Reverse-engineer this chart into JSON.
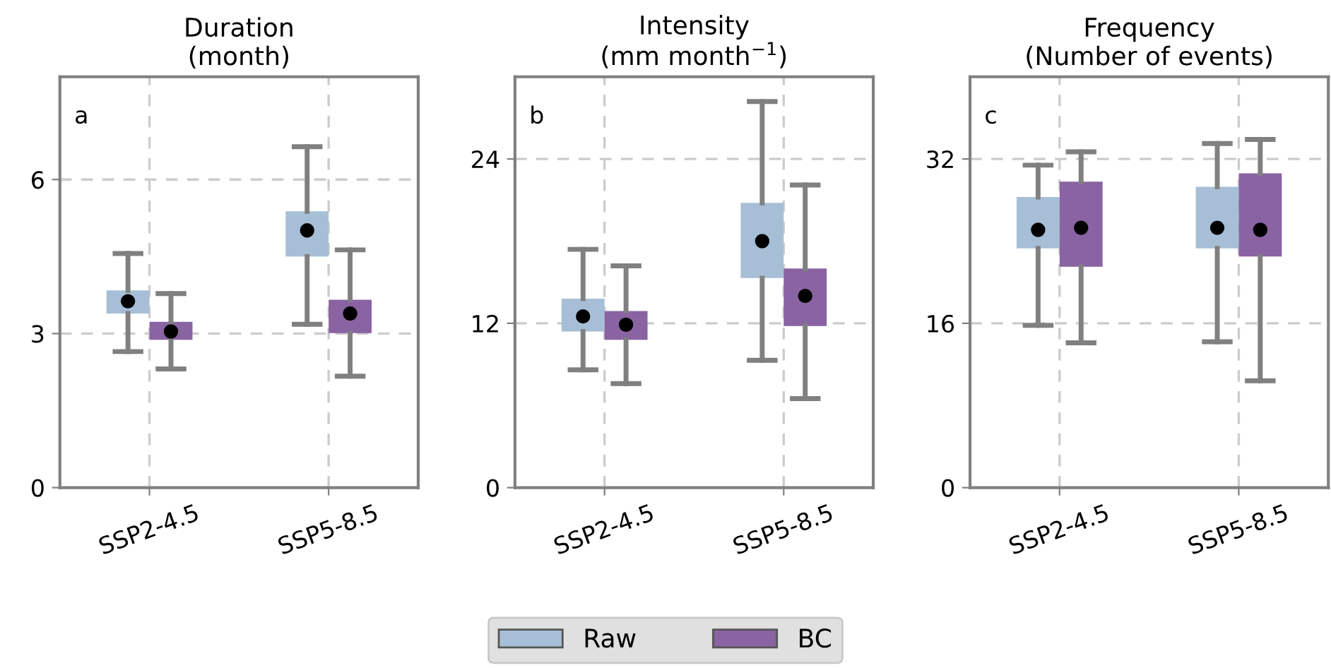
{
  "chart_data": [
    {
      "type": "box",
      "title": "Duration\n(month)",
      "annotations": [
        "a"
      ],
      "categories": [
        "SSP2-4.5",
        "SSP5-8.5"
      ],
      "ylim": [
        0,
        8
      ],
      "yticks": [
        0,
        3,
        6
      ],
      "grid": true,
      "legend": "bottom",
      "series": [
        {
          "name": "Raw",
          "color": "#a7bfd6",
          "boxes": [
            {
              "low": 2.65,
              "q1": 3.39,
              "median": 3.63,
              "q3": 3.84,
              "high": 4.56
            },
            {
              "low": 3.18,
              "q1": 4.5,
              "median": 5.01,
              "q3": 5.38,
              "high": 6.64
            }
          ]
        },
        {
          "name": "BC",
          "color": "#8a63a2",
          "boxes": [
            {
              "low": 2.31,
              "q1": 2.88,
              "median": 3.04,
              "q3": 3.23,
              "high": 3.78
            },
            {
              "low": 2.17,
              "q1": 3.01,
              "median": 3.39,
              "q3": 3.66,
              "high": 4.63
            }
          ]
        }
      ]
    },
    {
      "type": "box",
      "title": "Intensity\n(mm month$^{−1}$)",
      "annotations": [
        "b"
      ],
      "categories": [
        "SSP2-4.5",
        "SSP5-8.5"
      ],
      "ylim": [
        0,
        30
      ],
      "yticks": [
        0,
        12,
        24
      ],
      "grid": true,
      "series": [
        {
          "color": "#a7bfd6",
          "boxes": [
            {
              "low": 8.6,
              "q1": 11.4,
              "median": 12.5,
              "q3": 13.8,
              "high": 17.4
            },
            {
              "low": 9.3,
              "q1": 15.3,
              "median": 18.0,
              "q3": 20.8,
              "high": 28.2
            }
          ]
        },
        {
          "color": "#8a63a2",
          "boxes": [
            {
              "low": 7.6,
              "q1": 10.8,
              "median": 11.9,
              "q3": 12.9,
              "high": 16.2
            },
            {
              "low": 6.5,
              "q1": 11.8,
              "median": 14.0,
              "q3": 16.0,
              "high": 22.1
            }
          ]
        }
      ]
    },
    {
      "type": "box",
      "title": "Frequency\n(Number of events)",
      "annotations": [
        "c"
      ],
      "categories": [
        "SSP2-4.5",
        "SSP5-8.5"
      ],
      "ylim": [
        0,
        40
      ],
      "yticks": [
        0,
        16,
        32
      ],
      "grid": true,
      "series": [
        {
          "color": "#a7bfd6",
          "boxes": [
            {
              "low": 15.8,
              "q1": 23.3,
              "median": 25.1,
              "q3": 28.3,
              "high": 31.4
            },
            {
              "low": 14.2,
              "q1": 23.3,
              "median": 25.3,
              "q3": 29.3,
              "high": 33.5
            }
          ]
        },
        {
          "color": "#8a63a2",
          "boxes": [
            {
              "low": 14.1,
              "q1": 21.5,
              "median": 25.3,
              "q3": 29.8,
              "high": 32.7
            },
            {
              "low": 10.4,
              "q1": 22.5,
              "median": 25.1,
              "q3": 30.6,
              "high": 33.9
            }
          ]
        }
      ]
    }
  ]
}
